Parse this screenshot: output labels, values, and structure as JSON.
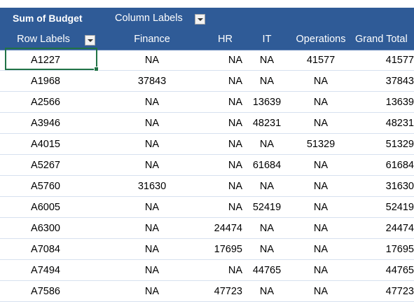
{
  "pivot": {
    "value_field_label": "Sum of Budget",
    "column_labels_label": "Column Labels",
    "row_labels_label": "Row Labels",
    "columns": [
      "Finance",
      "HR",
      "IT",
      "Operations",
      "Grand Total"
    ],
    "rows": [
      {
        "label": "A1227",
        "finance": "NA",
        "hr": "NA",
        "it": "NA",
        "operations": "41577",
        "grand_total": "41577"
      },
      {
        "label": "A1968",
        "finance": "37843",
        "hr": "NA",
        "it": "NA",
        "operations": "NA",
        "grand_total": "37843"
      },
      {
        "label": "A2566",
        "finance": "NA",
        "hr": "NA",
        "it": "13639",
        "operations": "NA",
        "grand_total": "13639"
      },
      {
        "label": "A3946",
        "finance": "NA",
        "hr": "NA",
        "it": "48231",
        "operations": "NA",
        "grand_total": "48231"
      },
      {
        "label": "A4015",
        "finance": "NA",
        "hr": "NA",
        "it": "NA",
        "operations": "51329",
        "grand_total": "51329"
      },
      {
        "label": "A5267",
        "finance": "NA",
        "hr": "NA",
        "it": "61684",
        "operations": "NA",
        "grand_total": "61684"
      },
      {
        "label": "A5760",
        "finance": "31630",
        "hr": "NA",
        "it": "NA",
        "operations": "NA",
        "grand_total": "31630"
      },
      {
        "label": "A6005",
        "finance": "NA",
        "hr": "NA",
        "it": "52419",
        "operations": "NA",
        "grand_total": "52419"
      },
      {
        "label": "A6300",
        "finance": "NA",
        "hr": "24474",
        "it": "NA",
        "operations": "NA",
        "grand_total": "24474"
      },
      {
        "label": "A7084",
        "finance": "NA",
        "hr": "17695",
        "it": "NA",
        "operations": "NA",
        "grand_total": "17695"
      },
      {
        "label": "A7494",
        "finance": "NA",
        "hr": "NA",
        "it": "44765",
        "operations": "NA",
        "grand_total": "44765"
      },
      {
        "label": "A7586",
        "finance": "NA",
        "hr": "47723",
        "it": "NA",
        "operations": "NA",
        "grand_total": "47723"
      }
    ]
  },
  "colors": {
    "header_bg": "#2f5b97",
    "header_text": "#ffffff",
    "row_divider": "#d7e1ef",
    "selection": "#217346"
  },
  "icons": {
    "filter_dropdown": "chevron-down-icon"
  }
}
